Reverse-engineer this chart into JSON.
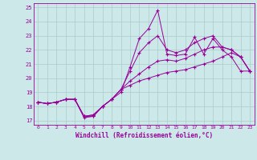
{
  "xlabel": "Windchill (Refroidissement éolien,°C)",
  "bg_color": "#cce8e8",
  "line_color": "#990099",
  "grid_color": "#aacccc",
  "xlim": [
    -0.5,
    23.5
  ],
  "ylim": [
    16.7,
    25.3
  ],
  "xticks": [
    0,
    1,
    2,
    3,
    4,
    5,
    6,
    7,
    8,
    9,
    10,
    11,
    12,
    13,
    14,
    15,
    16,
    17,
    18,
    19,
    20,
    21,
    22,
    23
  ],
  "yticks": [
    17,
    18,
    19,
    20,
    21,
    22,
    23,
    24,
    25
  ],
  "lines": [
    [
      18.3,
      18.2,
      18.3,
      18.5,
      18.5,
      17.2,
      17.3,
      18.0,
      18.5,
      19.0,
      20.8,
      22.8,
      23.5,
      24.8,
      21.7,
      21.6,
      21.7,
      22.9,
      21.7,
      22.8,
      22.0,
      21.5,
      20.5,
      20.5
    ],
    [
      18.3,
      18.2,
      18.3,
      18.5,
      18.5,
      17.3,
      17.3,
      18.0,
      18.5,
      19.2,
      20.5,
      21.8,
      22.5,
      23.0,
      22.0,
      21.8,
      22.0,
      22.5,
      22.8,
      23.0,
      22.2,
      22.0,
      21.5,
      20.5
    ],
    [
      18.3,
      18.2,
      18.3,
      18.5,
      18.5,
      17.3,
      17.4,
      18.0,
      18.5,
      19.2,
      19.8,
      20.3,
      20.8,
      21.2,
      21.3,
      21.2,
      21.4,
      21.7,
      22.0,
      22.2,
      22.2,
      22.0,
      21.5,
      20.5
    ],
    [
      18.3,
      18.2,
      18.3,
      18.5,
      18.5,
      17.3,
      17.4,
      18.0,
      18.5,
      19.2,
      19.5,
      19.8,
      20.0,
      20.2,
      20.4,
      20.5,
      20.6,
      20.8,
      21.0,
      21.2,
      21.5,
      21.8,
      21.5,
      20.5
    ]
  ]
}
